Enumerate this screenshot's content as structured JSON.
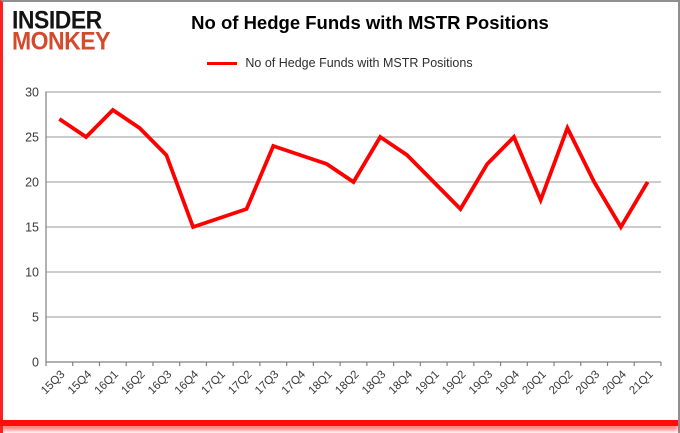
{
  "logo": {
    "line1": "INSIDER",
    "line2": "MONKEY"
  },
  "header": {
    "title": "No of Hedge Funds with MSTR Positions"
  },
  "legend": {
    "label": "No of Hedge Funds with MSTR Positions"
  },
  "colors": {
    "line": "#ff0000",
    "grid": "#9a9a9a",
    "axis": "#808080",
    "tick_text": "#3a3a3a",
    "logo_red": "#d34a2c",
    "border_red": "#fd2020",
    "border_gray": "#8f8f8f"
  },
  "chart_data": {
    "type": "line",
    "title": "No of Hedge Funds with MSTR Positions",
    "categories": [
      "15Q3",
      "15Q4",
      "16Q1",
      "16Q2",
      "16Q3",
      "16Q4",
      "17Q1",
      "17Q2",
      "17Q3",
      "17Q4",
      "18Q1",
      "18Q2",
      "18Q3",
      "18Q4",
      "19Q1",
      "19Q2",
      "19Q3",
      "19Q4",
      "20Q1",
      "20Q2",
      "20Q3",
      "20Q4",
      "21Q1"
    ],
    "series": [
      {
        "name": "No of Hedge Funds with MSTR Positions",
        "color": "#ff0000",
        "values": [
          27,
          25,
          28,
          26,
          23,
          15,
          16,
          17,
          24,
          23,
          22,
          20,
          25,
          23,
          20,
          17,
          22,
          25,
          18,
          26,
          20,
          15,
          20
        ]
      }
    ],
    "xlabel": "",
    "ylabel": "",
    "ylim": [
      0,
      30
    ],
    "y_ticks": [
      0,
      5,
      10,
      15,
      20,
      25,
      30
    ],
    "grid": true,
    "legend_position": "top"
  }
}
